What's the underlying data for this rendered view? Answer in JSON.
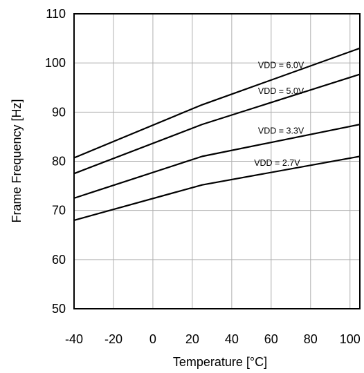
{
  "chart_data": {
    "type": "line",
    "title": "",
    "xlabel": "Temperature [°C]",
    "ylabel": "Frame Frequency [Hz]",
    "xlim": [
      -40,
      105
    ],
    "ylim": [
      50,
      110
    ],
    "x_ticks": [
      -40,
      -20,
      0,
      20,
      40,
      60,
      80,
      100
    ],
    "y_ticks": [
      50,
      60,
      70,
      80,
      90,
      100,
      110
    ],
    "grid": true,
    "legend": "inline labels",
    "series": [
      {
        "name": "VDD = 6.0V",
        "x": [
          -40,
          25,
          105
        ],
        "values": [
          80.7,
          91.5,
          103.0
        ]
      },
      {
        "name": "VDD = 5.0V",
        "x": [
          -40,
          25,
          105
        ],
        "values": [
          77.5,
          87.5,
          97.7
        ]
      },
      {
        "name": "VDD = 3.3V",
        "x": [
          -40,
          25,
          105
        ],
        "values": [
          72.5,
          81.0,
          87.5
        ]
      },
      {
        "name": "VDD = 2.7V",
        "x": [
          -40,
          25,
          105
        ],
        "values": [
          68.0,
          75.2,
          81.0
        ]
      }
    ],
    "line_color": "#000000",
    "grid_color": "#b0b0b0"
  }
}
